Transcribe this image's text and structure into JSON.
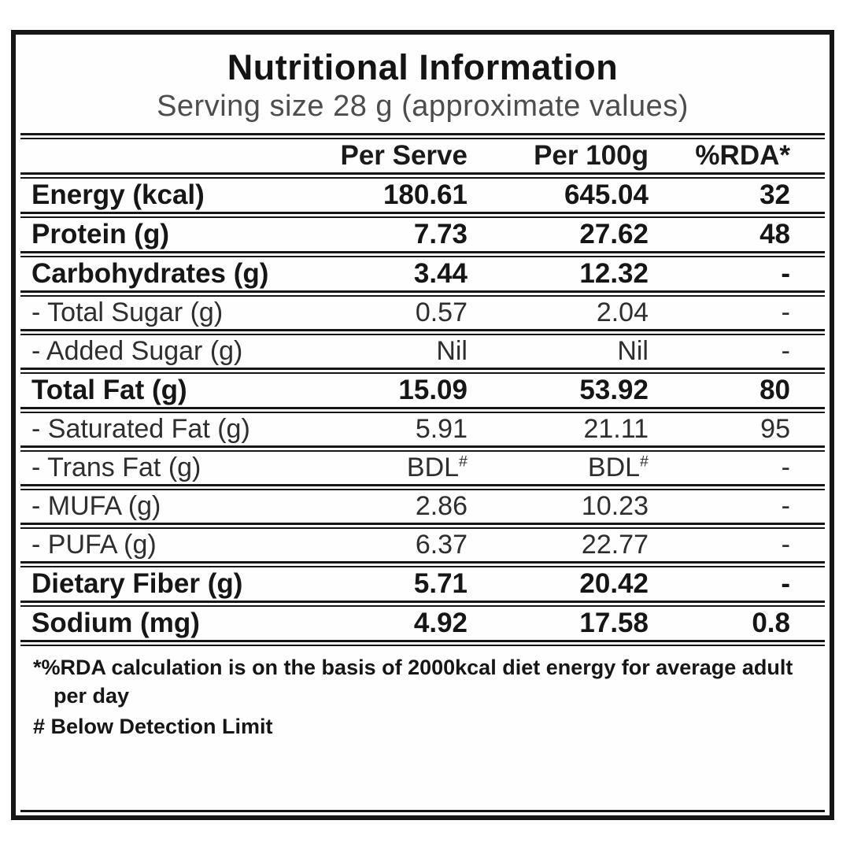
{
  "header": {
    "title": "Nutritional Information",
    "subtitle": "Serving size 28 g (approximate values)"
  },
  "columns": {
    "label": "",
    "per_serve": "Per Serve",
    "per_100g": "Per 100g",
    "rda": "%RDA*"
  },
  "rows": [
    {
      "label": "Energy (kcal)",
      "per_serve": "180.61",
      "per_100g": "645.04",
      "rda": "32",
      "style": "main"
    },
    {
      "label": "Protein (g)",
      "per_serve": "7.73",
      "per_100g": "27.62",
      "rda": "48",
      "style": "main"
    },
    {
      "label": "Carbohydrates (g)",
      "per_serve": "3.44",
      "per_100g": "12.32",
      "rda": "-",
      "style": "main"
    },
    {
      "label": "- Total Sugar (g)",
      "per_serve": "0.57",
      "per_100g": "2.04",
      "rda": "-",
      "style": "sub"
    },
    {
      "label": "- Added Sugar (g)",
      "per_serve": "Nil",
      "per_100g": "Nil",
      "rda": "-",
      "style": "sub"
    },
    {
      "label": "Total Fat (g)",
      "per_serve": "15.09",
      "per_100g": "53.92",
      "rda": "80",
      "style": "main"
    },
    {
      "label": "- Saturated Fat (g)",
      "per_serve": "5.91",
      "per_100g": "21.11",
      "rda": "95",
      "style": "sub"
    },
    {
      "label": "- Trans Fat (g)",
      "per_serve": "BDL#",
      "per_100g": "BDL#",
      "rda": "-",
      "style": "sub"
    },
    {
      "label": "- MUFA (g)",
      "per_serve": "2.86",
      "per_100g": "10.23",
      "rda": "-",
      "style": "sub"
    },
    {
      "label": "- PUFA (g)",
      "per_serve": "6.37",
      "per_100g": "22.77",
      "rda": "-",
      "style": "sub"
    },
    {
      "label": "Dietary Fiber (g)",
      "per_serve": "5.71",
      "per_100g": "20.42",
      "rda": "-",
      "style": "main"
    },
    {
      "label": "Sodium (mg)",
      "per_serve": "4.92",
      "per_100g": "17.58",
      "rda": "0.8",
      "style": "main"
    }
  ],
  "footnotes": [
    "*%RDA calculation is on the basis of 2000kcal diet energy for average adult per day",
    "# Below Detection Limit"
  ],
  "colors": {
    "border": "#161616",
    "title_text": "#141414",
    "subtitle_text": "#4d4d4d",
    "sub_row_text": "#2e2e2e",
    "background": "#ffffff"
  }
}
